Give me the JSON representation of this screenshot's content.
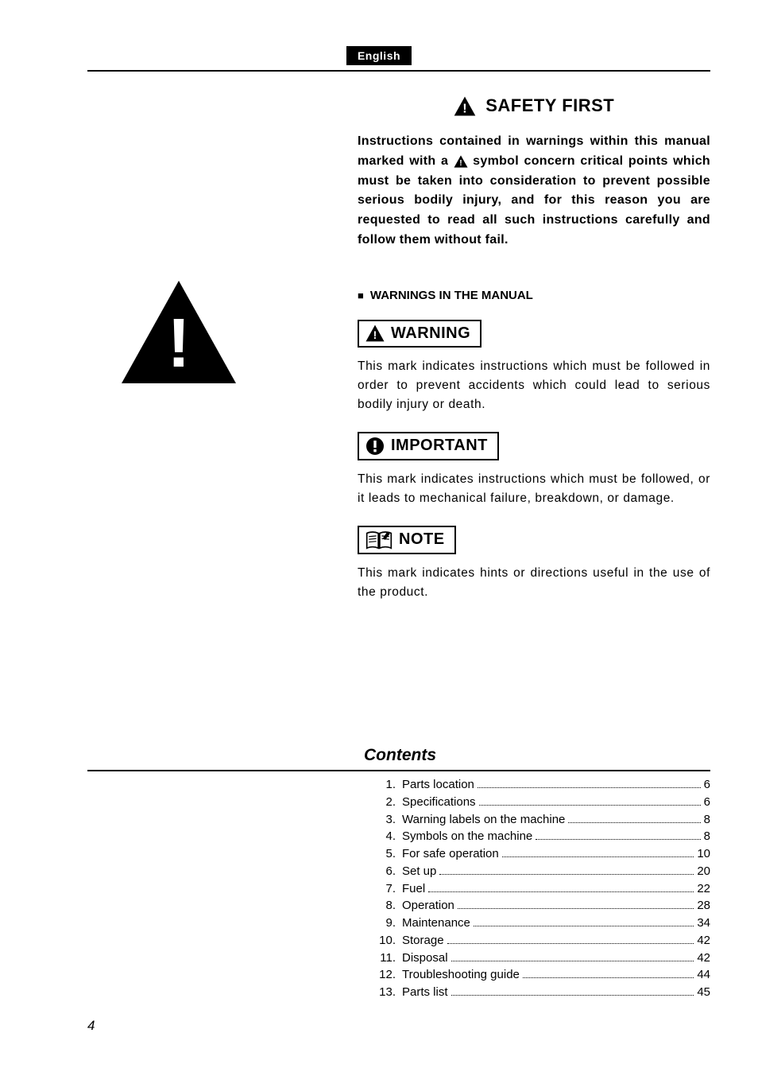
{
  "language_badge": "English",
  "page_number": "4",
  "safety_first": {
    "heading": "SAFETY FIRST",
    "intro_before_symbol": "Instructions contained in warnings within this manual marked with a ",
    "intro_after_symbol": " symbol concern critical points which must be taken into consideration to prevent possible serious bodily injury, and for this reason you are requested to read all such instructions carefully and follow them without fail.",
    "subheading": "WARNINGS IN THE MANUAL"
  },
  "callouts": {
    "warning": {
      "label": "WARNING",
      "text": "This mark indicates instructions which must be followed in order to prevent accidents which could lead to serious bodily injury or death."
    },
    "important": {
      "label": "IMPORTANT",
      "text": "This mark indicates instructions which must be followed, or it leads to mechanical failure, breakdown, or damage."
    },
    "note": {
      "label": "NOTE",
      "text": "This mark indicates hints or directions useful in the use of the product."
    }
  },
  "contents": {
    "heading": "Contents",
    "items": [
      {
        "num": "1.",
        "label": "Parts location",
        "page": "6"
      },
      {
        "num": "2.",
        "label": "Specifications",
        "page": "6"
      },
      {
        "num": "3.",
        "label": "Warning labels on the machine",
        "page": "8"
      },
      {
        "num": "4.",
        "label": "Symbols on the machine",
        "page": "8"
      },
      {
        "num": "5.",
        "label": "For safe operation",
        "page": "10"
      },
      {
        "num": "6.",
        "label": "Set up",
        "page": "20"
      },
      {
        "num": "7.",
        "label": "Fuel",
        "page": "22"
      },
      {
        "num": "8.",
        "label": "Operation",
        "page": "28"
      },
      {
        "num": "9.",
        "label": "Maintenance",
        "page": "34"
      },
      {
        "num": "10.",
        "label": "Storage",
        "page": "42"
      },
      {
        "num": "11.",
        "label": "Disposal",
        "page": "42"
      },
      {
        "num": "12.",
        "label": "Troubleshooting guide",
        "page": "44"
      },
      {
        "num": "13.",
        "label": "Parts list",
        "page": "45"
      }
    ]
  },
  "colors": {
    "text": "#000000",
    "background": "#ffffff",
    "badge_bg": "#000000",
    "badge_fg": "#ffffff"
  }
}
